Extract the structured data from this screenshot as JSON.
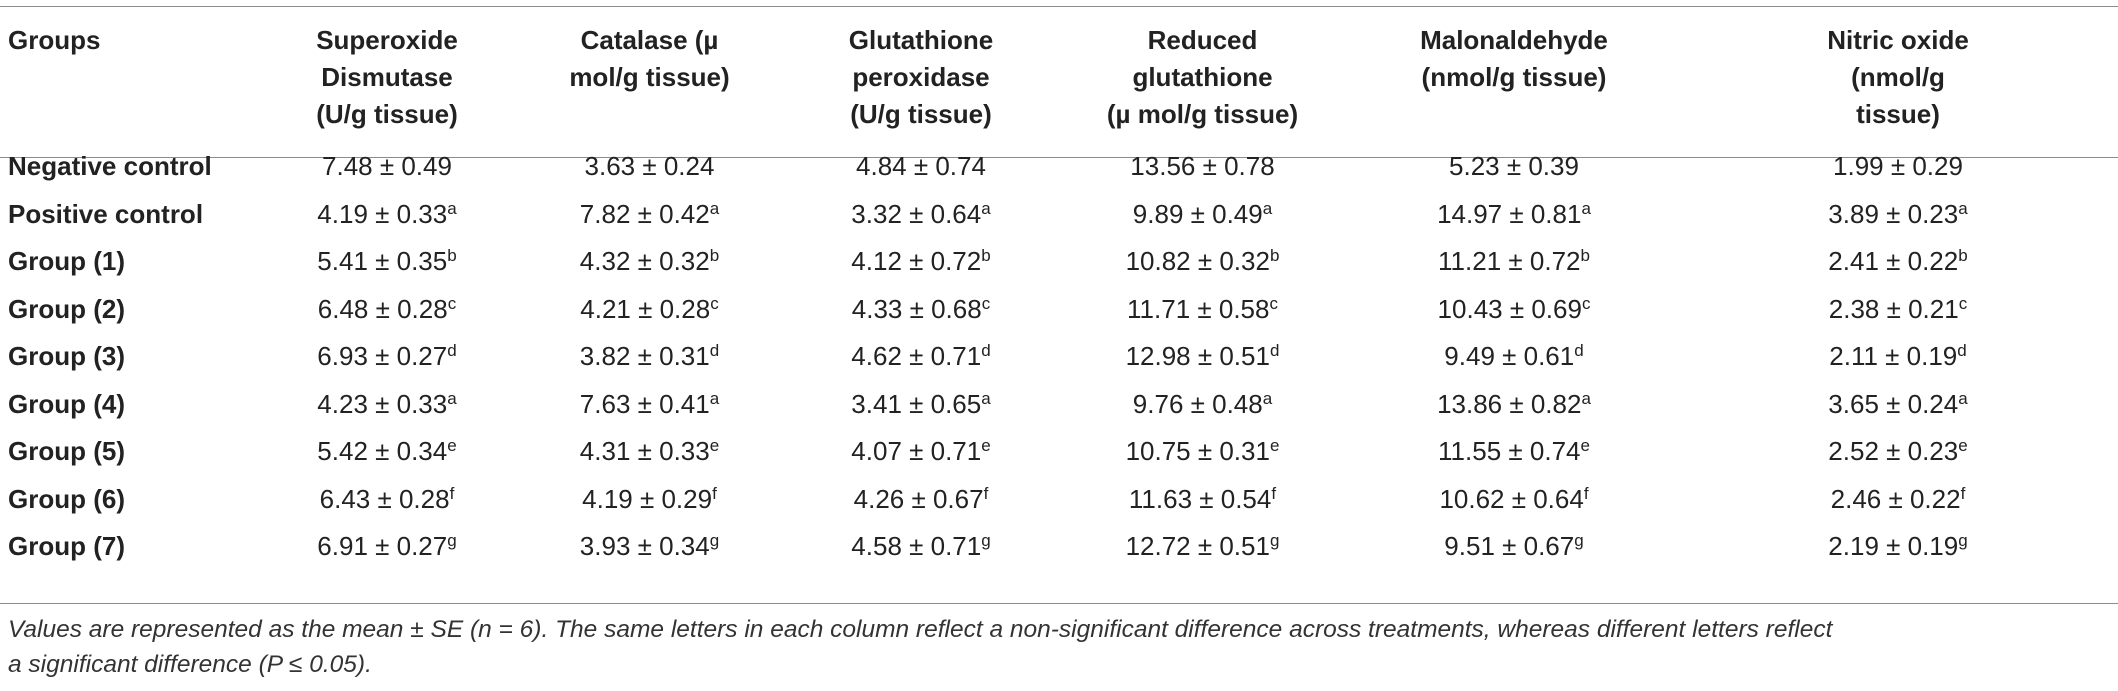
{
  "table": {
    "headers": [
      [
        "Groups"
      ],
      [
        "Superoxide",
        "Dismutase",
        "(U/g tissue)"
      ],
      [
        "Catalase (µ",
        "mol/g tissue)"
      ],
      [
        "Glutathione",
        "peroxidase",
        "(U/g tissue)"
      ],
      [
        "Reduced",
        "glutathione",
        "(µ mol/g tissue)"
      ],
      [
        "Malonaldehyde",
        "(nmol/g tissue)"
      ],
      [
        "Nitric oxide",
        "(nmol/g",
        "tissue)"
      ]
    ],
    "rows": [
      {
        "group": "Negative control",
        "cells": [
          {
            "v": "7.48 ± 0.49",
            "s": ""
          },
          {
            "v": "3.63 ± 0.24",
            "s": ""
          },
          {
            "v": "4.84 ± 0.74",
            "s": ""
          },
          {
            "v": "13.56 ± 0.78",
            "s": ""
          },
          {
            "v": "5.23 ± 0.39",
            "s": ""
          },
          {
            "v": "1.99 ± 0.29",
            "s": ""
          }
        ]
      },
      {
        "group": "Positive control",
        "cells": [
          {
            "v": "4.19 ± 0.33",
            "s": "a"
          },
          {
            "v": "7.82 ± 0.42",
            "s": "a"
          },
          {
            "v": "3.32 ± 0.64",
            "s": "a"
          },
          {
            "v": "9.89 ± 0.49",
            "s": "a"
          },
          {
            "v": "14.97 ± 0.81",
            "s": "a"
          },
          {
            "v": "3.89 ± 0.23",
            "s": "a"
          }
        ]
      },
      {
        "group": "Group (1)",
        "cells": [
          {
            "v": "5.41 ± 0.35",
            "s": "b"
          },
          {
            "v": "4.32 ± 0.32",
            "s": "b"
          },
          {
            "v": "4.12 ± 0.72",
            "s": "b"
          },
          {
            "v": "10.82 ± 0.32",
            "s": "b"
          },
          {
            "v": "11.21 ± 0.72",
            "s": "b"
          },
          {
            "v": "2.41 ± 0.22",
            "s": "b"
          }
        ]
      },
      {
        "group": "Group (2)",
        "cells": [
          {
            "v": "6.48 ± 0.28",
            "s": "c"
          },
          {
            "v": "4.21 ± 0.28",
            "s": "c"
          },
          {
            "v": "4.33 ± 0.68",
            "s": "c"
          },
          {
            "v": "11.71 ± 0.58",
            "s": "c"
          },
          {
            "v": "10.43 ± 0.69",
            "s": "c"
          },
          {
            "v": "2.38 ± 0.21",
            "s": "c"
          }
        ]
      },
      {
        "group": "Group (3)",
        "cells": [
          {
            "v": "6.93 ± 0.27",
            "s": "d"
          },
          {
            "v": "3.82 ± 0.31",
            "s": "d"
          },
          {
            "v": "4.62 ± 0.71",
            "s": "d"
          },
          {
            "v": "12.98 ± 0.51",
            "s": "d"
          },
          {
            "v": "9.49 ± 0.61",
            "s": "d"
          },
          {
            "v": "2.11 ± 0.19",
            "s": "d"
          }
        ]
      },
      {
        "group": "Group (4)",
        "cells": [
          {
            "v": "4.23 ± 0.33",
            "s": "a"
          },
          {
            "v": "7.63 ± 0.41",
            "s": "a"
          },
          {
            "v": "3.41 ± 0.65",
            "s": "a"
          },
          {
            "v": "9.76 ± 0.48",
            "s": "a"
          },
          {
            "v": "13.86 ± 0.82",
            "s": "a"
          },
          {
            "v": "3.65 ± 0.24",
            "s": "a"
          }
        ]
      },
      {
        "group": "Group (5)",
        "cells": [
          {
            "v": "5.42 ± 0.34",
            "s": "e"
          },
          {
            "v": "4.31 ± 0.33",
            "s": "e"
          },
          {
            "v": "4.07 ± 0.71",
            "s": "e"
          },
          {
            "v": "10.75 ± 0.31",
            "s": "e"
          },
          {
            "v": "11.55 ± 0.74",
            "s": "e"
          },
          {
            "v": "2.52 ± 0.23",
            "s": "e"
          }
        ]
      },
      {
        "group": "Group (6)",
        "cells": [
          {
            "v": "6.43 ± 0.28",
            "s": "f"
          },
          {
            "v": "4.19 ± 0.29",
            "s": "f"
          },
          {
            "v": "4.26 ± 0.67",
            "s": "f"
          },
          {
            "v": "11.63 ± 0.54",
            "s": "f"
          },
          {
            "v": "10.62 ± 0.64",
            "s": "f"
          },
          {
            "v": "2.46 ± 0.22",
            "s": "f"
          }
        ]
      },
      {
        "group": "Group (7)",
        "cells": [
          {
            "v": "6.91 ± 0.27",
            "s": "g"
          },
          {
            "v": "3.93 ± 0.34",
            "s": "g"
          },
          {
            "v": "4.58 ± 0.71",
            "s": "g"
          },
          {
            "v": "12.72 ± 0.51",
            "s": "g"
          },
          {
            "v": "9.51 ± 0.67",
            "s": "g"
          },
          {
            "v": "2.19 ± 0.19",
            "s": "g"
          }
        ]
      }
    ]
  },
  "footnote": {
    "line1": "Values are represented as the mean ± SE (n = 6). The same letters in each column reflect a non-significant difference across treatments, whereas different letters reflect",
    "line2": "a significant difference (P ≤ 0.05)."
  }
}
